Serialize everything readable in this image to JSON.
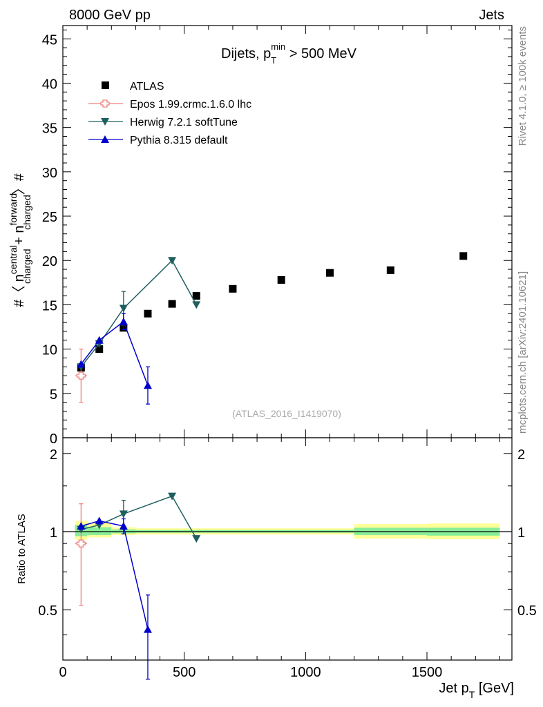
{
  "header": {
    "left": "8000 GeV pp",
    "right": "Jets"
  },
  "side_labels": {
    "rivet": "Rivet 4.1.0, ≥ 100k events",
    "mcplots": "mcplots.cern.ch [arXiv:2401.10621]"
  },
  "chart_data": [
    {
      "type": "scatter",
      "panel": "main",
      "title": {
        "main": "Dijets, p",
        "sub": "T",
        "sup": "min",
        "tail": " > 500 MeV"
      },
      "ylabel": {
        "prefix": "#〈 n",
        "sup1": "central",
        "sub1": "charged",
        "mid": " + n",
        "sup2": "forward",
        "sub2": "charged",
        "suffix": "〉#"
      },
      "watermark": "(ATLAS_2016_I1419070)",
      "xlim": [
        0,
        1850
      ],
      "ylim": [
        0,
        46.5
      ],
      "y_ticks": [
        "0",
        "5",
        "10",
        "15",
        "20",
        "25",
        "30",
        "35",
        "40",
        "45"
      ],
      "legend": [
        "ATLAS",
        "Epos 1.99.crmc.1.6.0 lhc",
        "Herwig 7.2.1 softTune",
        "Pythia 8.315 default"
      ],
      "legend_position": "top-left",
      "series": [
        {
          "name": "ATLAS",
          "color": "#000000",
          "marker": "square",
          "x": [
            75,
            150,
            250,
            350,
            450,
            550,
            700,
            900,
            1100,
            1350,
            1650
          ],
          "y": [
            7.9,
            10.0,
            12.4,
            14.0,
            15.1,
            16.0,
            16.8,
            17.8,
            18.6,
            18.9,
            20.5
          ]
        },
        {
          "name": "Epos 1.99.crmc.1.6.0 lhc",
          "color": "#f08080",
          "marker": "open-cross",
          "x": [
            75
          ],
          "y": [
            7.0
          ],
          "yerr": [
            3.0
          ],
          "xerr": [
            25
          ]
        },
        {
          "name": "Herwig 7.2.1 softTune",
          "color": "#1f5f5f",
          "marker": "triangle-down",
          "x": [
            75,
            150,
            250,
            450,
            550
          ],
          "y": [
            8.0,
            10.6,
            14.6,
            20.0,
            15.0
          ],
          "yerr": [
            0,
            0,
            1.9,
            0,
            0
          ]
        },
        {
          "name": "Pythia 8.315 default",
          "color": "#0000cc",
          "marker": "triangle-up",
          "x": [
            75,
            150,
            250,
            350
          ],
          "y": [
            8.3,
            11.0,
            13.1,
            5.9
          ],
          "yerr": [
            0,
            0,
            0.9,
            2.1
          ]
        }
      ]
    },
    {
      "type": "scatter",
      "panel": "ratio",
      "ylabel": "Ratio to ATLAS",
      "xlabel": {
        "main": "Jet p",
        "sub": "T",
        "tail": " [GeV]"
      },
      "xlim": [
        0,
        1850
      ],
      "ylim": [
        0.32,
        2.3
      ],
      "x_ticks": [
        "0",
        "500",
        "1000",
        "1500"
      ],
      "y_ticks": [
        "0.5",
        "1",
        "2"
      ],
      "uncertainty_bands": [
        {
          "x0": 50,
          "x1": 100,
          "outer": [
            0.93,
            1.1
          ],
          "inner": [
            0.96,
            1.06
          ]
        },
        {
          "x0": 100,
          "x1": 200,
          "outer": [
            0.95,
            1.08
          ],
          "inner": [
            0.97,
            1.04
          ]
        },
        {
          "x0": 200,
          "x1": 300,
          "outer": [
            0.97,
            1.04
          ],
          "inner": [
            0.985,
            1.02
          ]
        },
        {
          "x0": 300,
          "x1": 400,
          "outer": [
            0.975,
            1.03
          ],
          "inner": [
            0.99,
            1.015
          ]
        },
        {
          "x0": 400,
          "x1": 1200,
          "outer": [
            0.975,
            1.03
          ],
          "inner": [
            0.99,
            1.015
          ]
        },
        {
          "x0": 1200,
          "x1": 1500,
          "outer": [
            0.94,
            1.07
          ],
          "inner": [
            0.97,
            1.035
          ]
        },
        {
          "x0": 1500,
          "x1": 1800,
          "outer": [
            0.935,
            1.075
          ],
          "inner": [
            0.965,
            1.035
          ]
        }
      ],
      "series": [
        {
          "name": "Epos 1.99.crmc.1.6.0 lhc",
          "color": "#f08080",
          "marker": "open-cross",
          "x": [
            75
          ],
          "y": [
            0.9
          ],
          "yerr": [
            0.38
          ],
          "xerr": [
            25
          ]
        },
        {
          "name": "Herwig 7.2.1 softTune",
          "color": "#1f5f5f",
          "marker": "triangle-down",
          "x": [
            75,
            150,
            250,
            450,
            550
          ],
          "y": [
            1.02,
            1.06,
            1.17,
            1.37,
            0.94
          ],
          "yerr": [
            0,
            0,
            0.15,
            0,
            0
          ]
        },
        {
          "name": "Pythia 8.315 default",
          "color": "#0000cc",
          "marker": "triangle-up",
          "x": [
            75,
            150,
            250,
            350
          ],
          "y": [
            1.05,
            1.1,
            1.05,
            0.42
          ],
          "yerr": [
            0,
            0,
            0.07,
            0.15
          ]
        }
      ]
    }
  ]
}
